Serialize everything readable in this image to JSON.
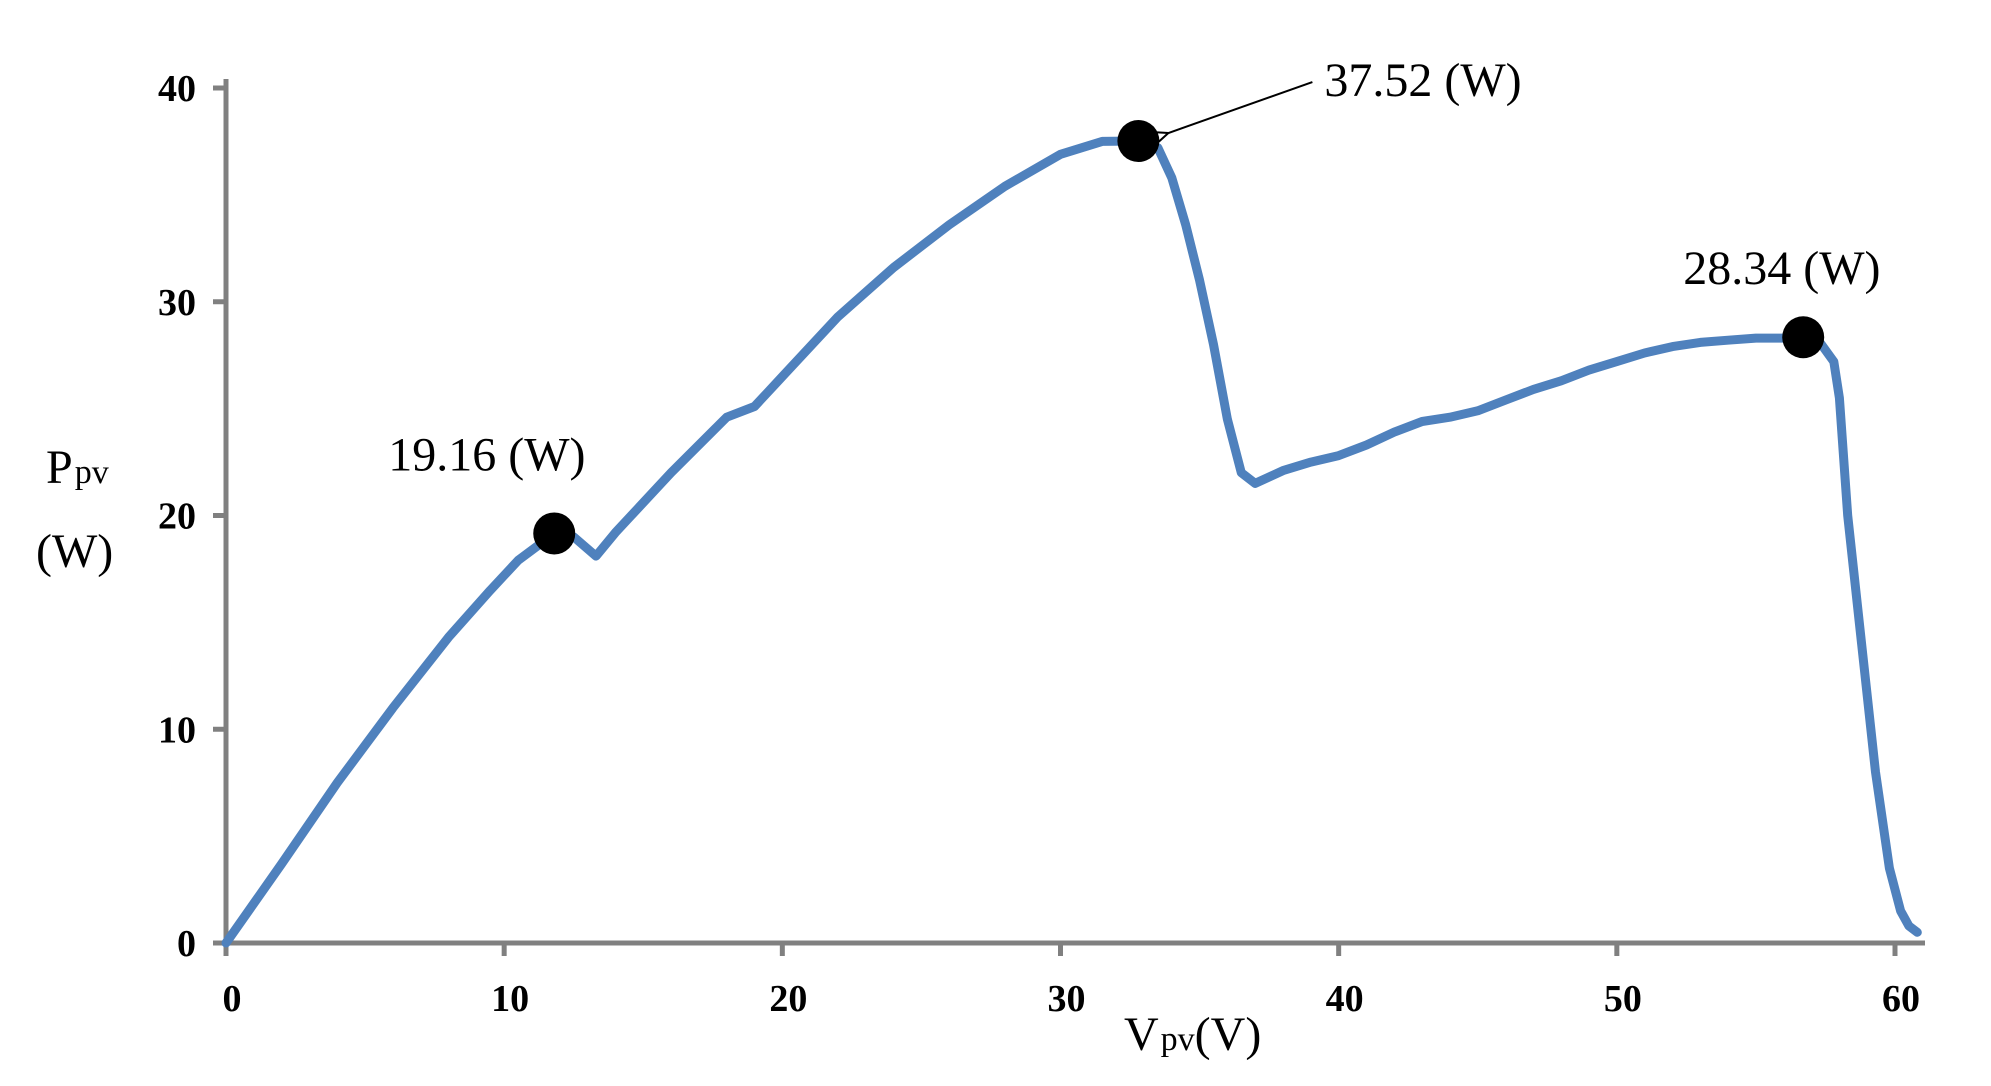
{
  "chart_data": {
    "type": "line",
    "x_label_main": "V",
    "x_label_sub": "pv",
    "x_label_unit": "(V)",
    "y_label_main": "P",
    "y_label_sub": "pv",
    "y_label_unit": "(W)",
    "xlim": [
      0,
      60
    ],
    "ylim": [
      0,
      40
    ],
    "x_ticks": [
      0,
      10,
      20,
      30,
      40,
      50,
      60
    ],
    "y_ticks": [
      0,
      10,
      20,
      30,
      40
    ],
    "grid": false,
    "line_color": "#4f81bd",
    "axis_color": "#808080",
    "marker_color": "#000000",
    "series": [
      {
        "x": [
          0,
          2,
          4,
          6,
          8,
          9.5,
          10.5,
          11.8,
          12.5,
          13.3,
          14,
          16,
          18,
          19,
          20,
          22,
          24,
          26,
          28,
          30,
          31.5,
          32.8,
          33.5,
          34,
          34.5,
          35,
          35.5,
          36,
          36.5,
          37,
          37.5,
          38,
          39,
          40,
          41,
          42,
          43,
          44,
          45,
          46,
          47,
          48,
          49,
          50,
          51,
          52,
          53,
          54,
          55,
          56,
          56.7,
          57.3,
          57.8,
          58,
          58.3,
          58.8,
          59.3,
          59.8,
          60.2,
          60.5,
          60.8
        ],
        "y": [
          0,
          3.7,
          7.5,
          11,
          14.3,
          16.5,
          17.9,
          19.16,
          19,
          18.1,
          19.2,
          22,
          24.6,
          25.1,
          26.5,
          29.3,
          31.6,
          33.6,
          35.4,
          36.9,
          37.5,
          37.52,
          37.2,
          35.8,
          33.6,
          31,
          28,
          24.5,
          22,
          21.5,
          21.8,
          22.1,
          22.5,
          22.8,
          23.3,
          23.9,
          24.4,
          24.6,
          24.9,
          25.4,
          25.9,
          26.3,
          26.8,
          27.2,
          27.6,
          27.9,
          28.1,
          28.2,
          28.3,
          28.3,
          28.34,
          28.1,
          27.2,
          25.5,
          20,
          14,
          8,
          3.5,
          1.5,
          0.8,
          0.5
        ]
      }
    ],
    "annotations": [
      {
        "x": 11.8,
        "y": 19.16,
        "label": "19.16 (W)"
      },
      {
        "x": 32.8,
        "y": 37.52,
        "label": "37.52 (W)"
      },
      {
        "x": 56.7,
        "y": 28.34,
        "label": "28.34 (W)"
      }
    ]
  }
}
